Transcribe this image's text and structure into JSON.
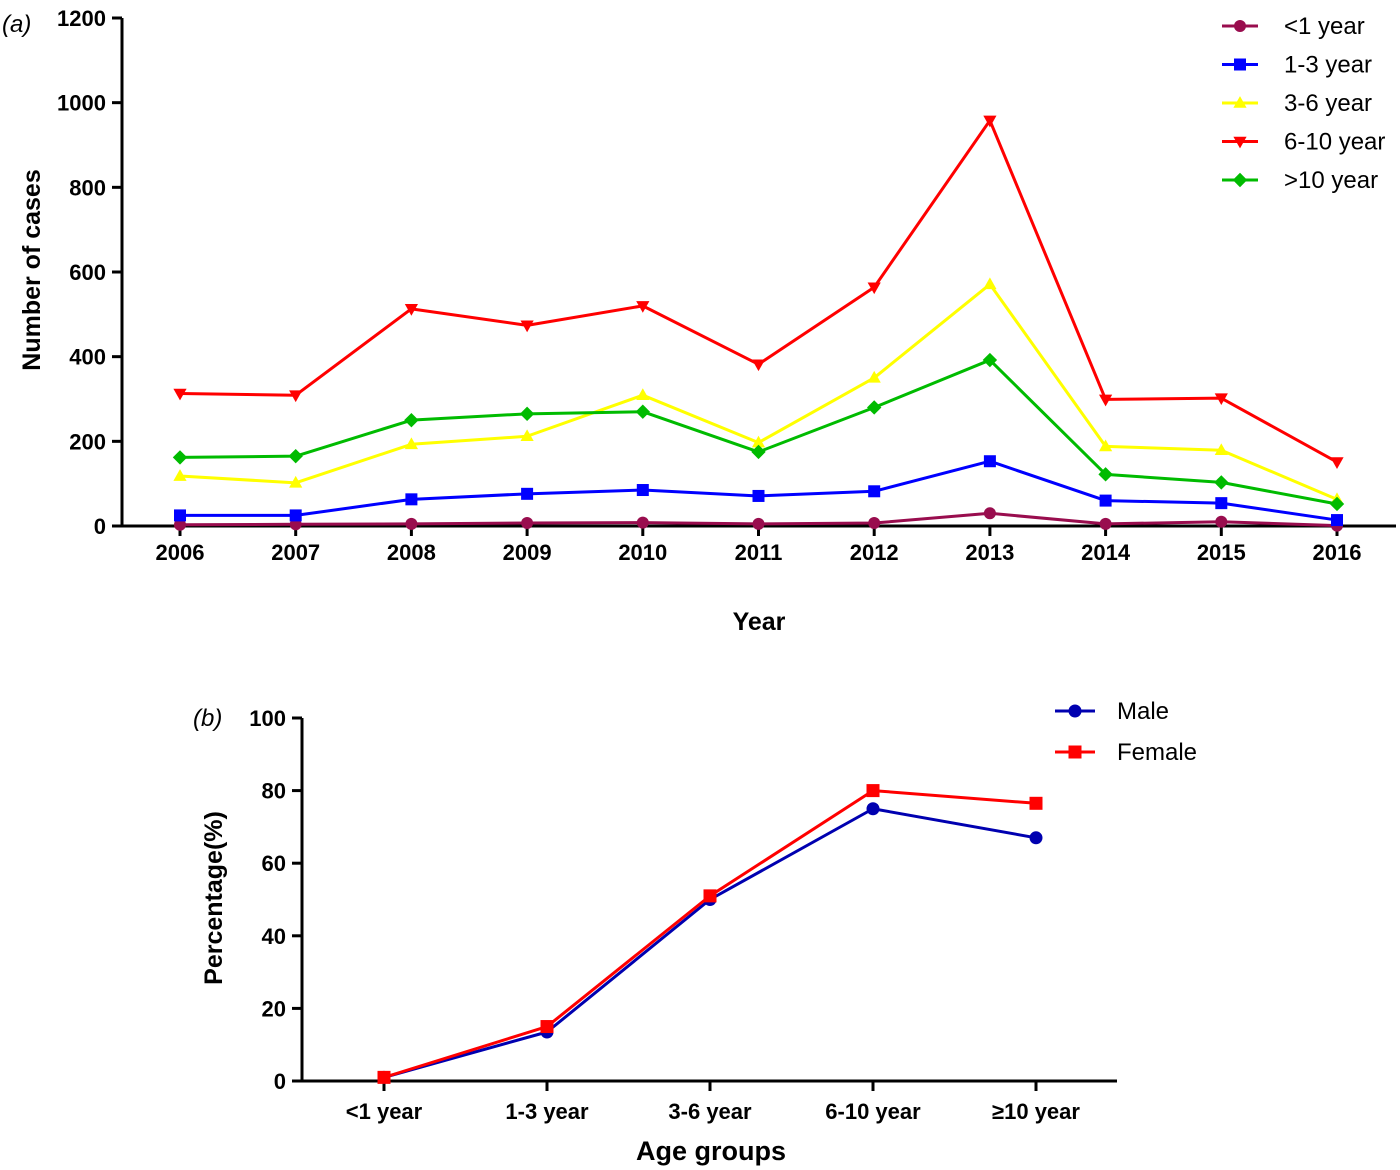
{
  "chart_data": [
    {
      "type": "line",
      "panel_label": "(a)",
      "xlabel": "Year",
      "ylabel": "Number of cases",
      "categories": [
        "2006",
        "2007",
        "2008",
        "2009",
        "2010",
        "2011",
        "2012",
        "2013",
        "2014",
        "2015",
        "2016"
      ],
      "ylim": [
        0,
        1200
      ],
      "yticks": [
        "0",
        "200",
        "400",
        "600",
        "800",
        "1000",
        "1200"
      ],
      "legend_position": "top-right",
      "grid": false,
      "series": [
        {
          "name": "<1 year",
          "color": "#990d4e",
          "marker": "circle",
          "values": [
            3,
            4,
            5,
            7,
            8,
            5,
            7,
            30,
            5,
            10,
            1
          ]
        },
        {
          "name": "1-3 year",
          "color": "#0000ff",
          "marker": "square",
          "values": [
            25,
            25,
            63,
            76,
            85,
            71,
            82,
            153,
            60,
            54,
            14
          ]
        },
        {
          "name": "3-6 year",
          "color": "#ffff00",
          "marker": "triangle-up",
          "values": [
            118,
            102,
            193,
            212,
            309,
            197,
            350,
            571,
            188,
            179,
            63
          ]
        },
        {
          "name": "6-10 year",
          "color": "#ff0000",
          "marker": "triangle-down",
          "values": [
            313,
            309,
            513,
            474,
            520,
            382,
            564,
            958,
            299,
            302,
            151
          ]
        },
        {
          "name": ">10 year",
          "color": "#00bb00",
          "marker": "diamond",
          "values": [
            162,
            165,
            250,
            265,
            270,
            175,
            280,
            392,
            122,
            103,
            52
          ]
        }
      ]
    },
    {
      "type": "line",
      "panel_label": "(b)",
      "xlabel": "Age groups",
      "ylabel": "Percentage(%)",
      "categories": [
        "<1 year",
        "1-3 year",
        "3-6 year",
        "6-10 year",
        "≥10 year"
      ],
      "ylim": [
        0,
        100
      ],
      "yticks": [
        "0",
        "20",
        "40",
        "60",
        "80",
        "100"
      ],
      "legend_position": "top-right",
      "grid": false,
      "series": [
        {
          "name": "Male",
          "color": "#0000b0",
          "marker": "circle",
          "values": [
            1,
            13.5,
            50,
            75,
            67
          ]
        },
        {
          "name": "Female",
          "color": "#ff0000",
          "marker": "square",
          "values": [
            1,
            15,
            51,
            80,
            76.5
          ]
        }
      ]
    }
  ]
}
